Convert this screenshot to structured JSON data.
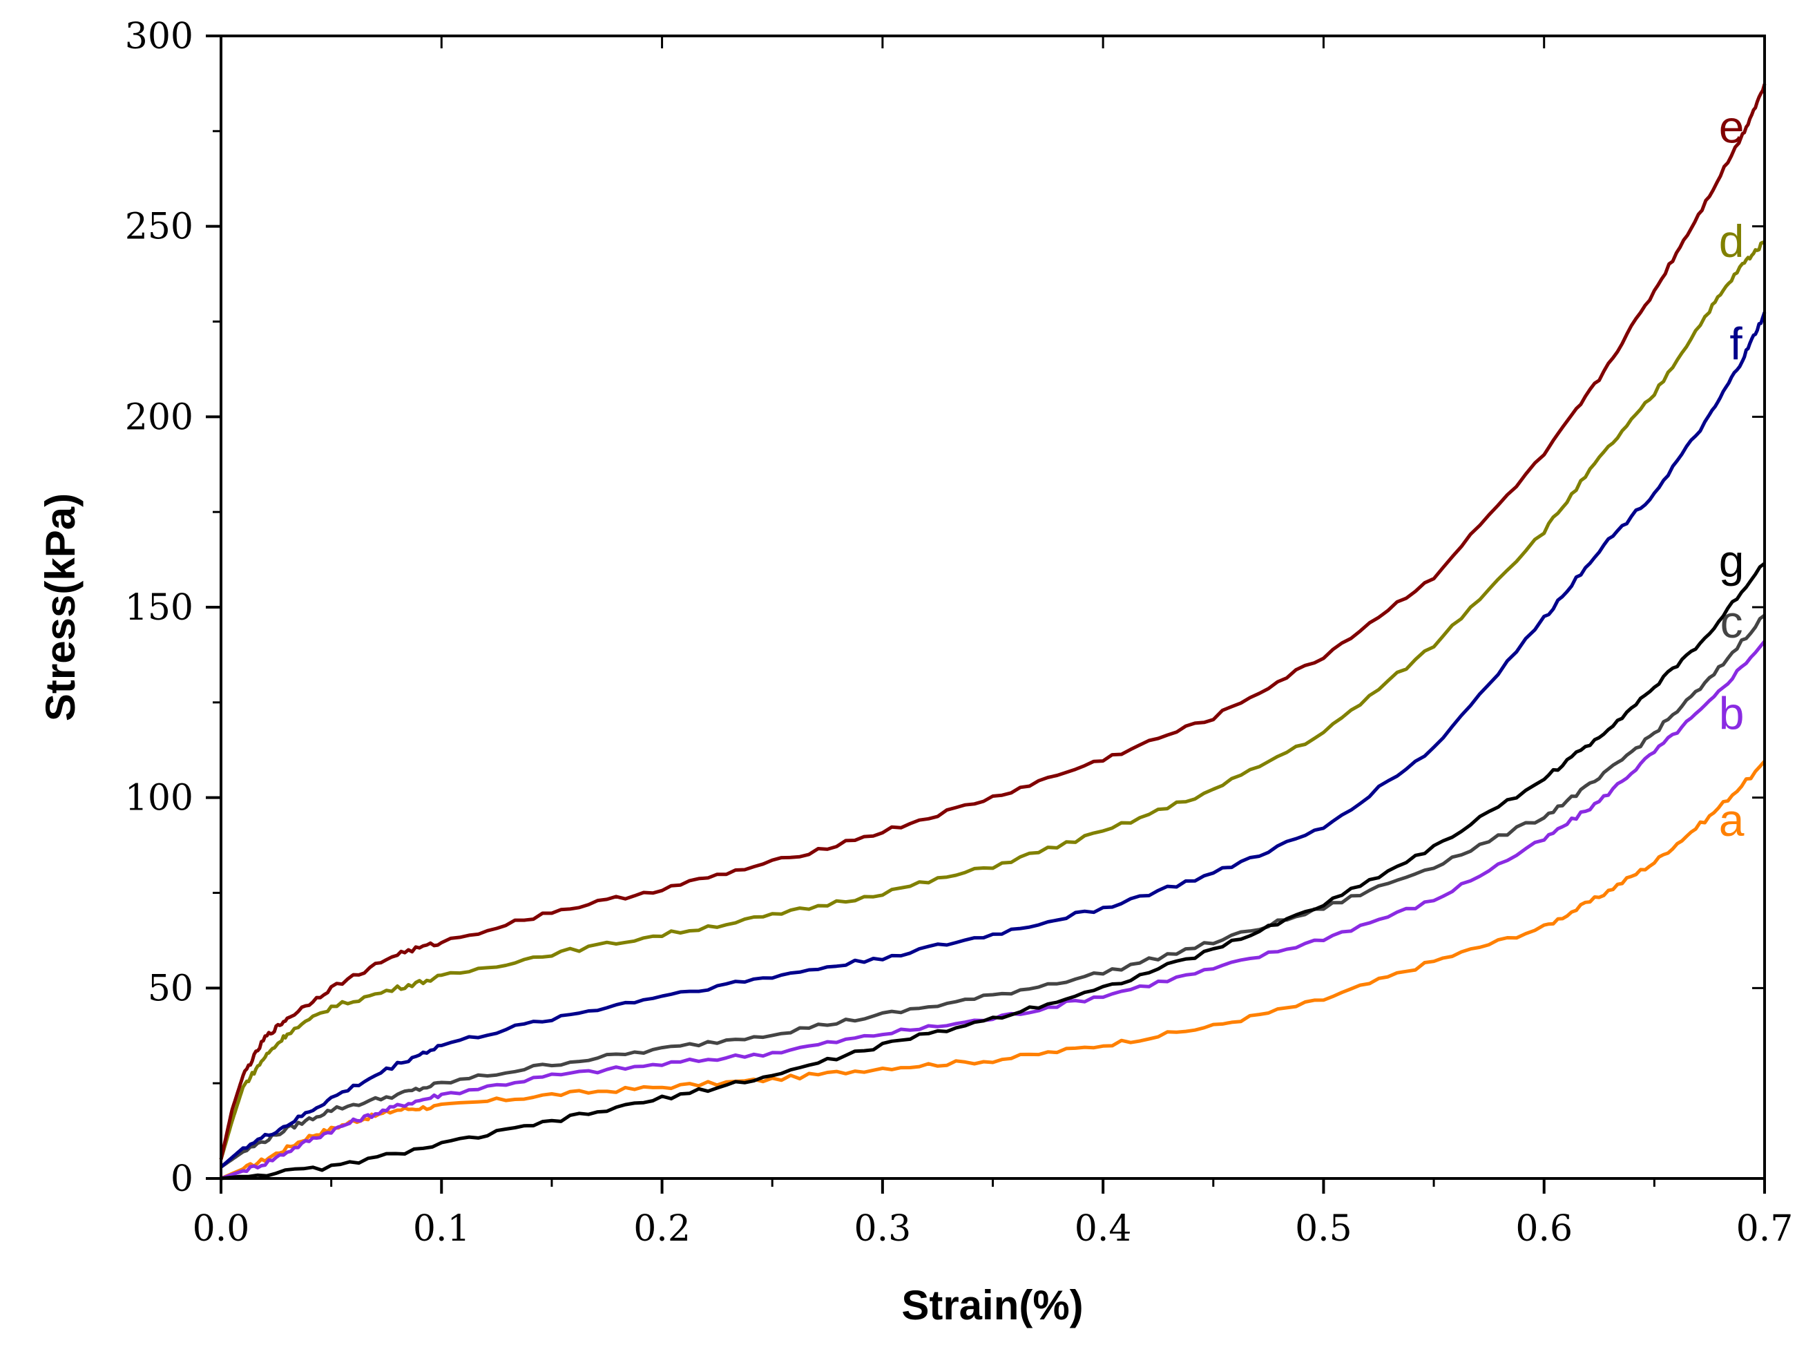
{
  "chart_data": {
    "type": "line",
    "title": "",
    "xlabel": "Strain(%)",
    "ylabel": "Stress(kPa)",
    "xlim": [
      0,
      0.7
    ],
    "ylim": [
      0,
      300
    ],
    "xticks": [
      0.0,
      0.1,
      0.2,
      0.3,
      0.4,
      0.5,
      0.6,
      0.7
    ],
    "xtick_labels": [
      "0.0",
      "0.1",
      "0.2",
      "0.3",
      "0.4",
      "0.5",
      "0.6",
      "0.7"
    ],
    "yticks": [
      0,
      50,
      100,
      150,
      200,
      250,
      300
    ],
    "ytick_labels": [
      "0",
      "50",
      "100",
      "150",
      "200",
      "250",
      "300"
    ],
    "grid": false,
    "series": [
      {
        "name": "a",
        "color": "#ff8000",
        "x": [
          0,
          0.02,
          0.04,
          0.06,
          0.08,
          0.1,
          0.15,
          0.2,
          0.25,
          0.3,
          0.35,
          0.4,
          0.45,
          0.5,
          0.55,
          0.6,
          0.625,
          0.65,
          0.675,
          0.7
        ],
        "y": [
          0,
          5,
          11,
          15,
          18,
          19,
          22,
          24,
          26,
          29,
          31,
          35,
          40,
          47,
          57,
          66,
          74,
          83,
          95,
          109
        ]
      },
      {
        "name": "b",
        "color": "#8a2be2",
        "x": [
          0,
          0.02,
          0.04,
          0.06,
          0.08,
          0.1,
          0.15,
          0.2,
          0.25,
          0.3,
          0.35,
          0.4,
          0.45,
          0.5,
          0.55,
          0.6,
          0.625,
          0.65,
          0.675,
          0.7
        ],
        "y": [
          0,
          4,
          10,
          15,
          19,
          22,
          27,
          30,
          33,
          38,
          42,
          48,
          55,
          63,
          73,
          89,
          99,
          112,
          125,
          141
        ]
      },
      {
        "name": "c",
        "color": "#444444",
        "x": [
          0,
          0.01,
          0.03,
          0.05,
          0.08,
          0.1,
          0.15,
          0.2,
          0.25,
          0.3,
          0.35,
          0.4,
          0.45,
          0.5,
          0.55,
          0.6,
          0.625,
          0.65,
          0.675,
          0.7
        ],
        "y": [
          3,
          7,
          13,
          18,
          22,
          25,
          30,
          34,
          38,
          43,
          48,
          54,
          62,
          71,
          82,
          95,
          105,
          117,
          131,
          148
        ]
      },
      {
        "name": "d",
        "color": "#808000",
        "x": [
          0,
          0.005,
          0.01,
          0.02,
          0.03,
          0.05,
          0.08,
          0.1,
          0.15,
          0.2,
          0.25,
          0.3,
          0.35,
          0.4,
          0.45,
          0.5,
          0.55,
          0.6,
          0.625,
          0.65,
          0.675,
          0.69,
          0.7
        ],
        "y": [
          5,
          15,
          24,
          32,
          38,
          45,
          50,
          53,
          59,
          64,
          69,
          75,
          82,
          91,
          102,
          117,
          140,
          170,
          189,
          206,
          228,
          240,
          246
        ]
      },
      {
        "name": "e",
        "color": "#800000",
        "x": [
          0,
          0.005,
          0.01,
          0.02,
          0.03,
          0.05,
          0.08,
          0.1,
          0.15,
          0.2,
          0.25,
          0.3,
          0.35,
          0.4,
          0.45,
          0.5,
          0.55,
          0.6,
          0.625,
          0.65,
          0.67,
          0.69,
          0.7
        ],
        "y": [
          5,
          18,
          27,
          37,
          42,
          50,
          59,
          62,
          70,
          76,
          83,
          91,
          100,
          110,
          121,
          137,
          158,
          190,
          210,
          233,
          253,
          274,
          287
        ]
      },
      {
        "name": "f",
        "color": "#00008b",
        "x": [
          0,
          0.01,
          0.03,
          0.05,
          0.08,
          0.1,
          0.15,
          0.2,
          0.25,
          0.3,
          0.35,
          0.4,
          0.45,
          0.5,
          0.55,
          0.6,
          0.625,
          0.65,
          0.675,
          0.69,
          0.7
        ],
        "y": [
          3,
          8,
          14,
          21,
          30,
          35,
          42,
          48,
          53,
          58,
          64,
          71,
          80,
          92,
          113,
          147,
          165,
          180,
          200,
          215,
          227
        ]
      },
      {
        "name": "g",
        "color": "#000000",
        "x": [
          0,
          0.05,
          0.1,
          0.15,
          0.2,
          0.25,
          0.3,
          0.35,
          0.4,
          0.45,
          0.5,
          0.55,
          0.6,
          0.625,
          0.65,
          0.675,
          0.7
        ],
        "y": [
          0,
          3,
          9,
          15,
          21,
          27,
          35,
          42,
          50,
          60,
          72,
          87,
          105,
          116,
          129,
          143,
          162
        ]
      }
    ],
    "series_labels": [
      {
        "text": "e",
        "x": 0.685,
        "y": 272,
        "color": "#800000"
      },
      {
        "text": "d",
        "x": 0.685,
        "y": 242,
        "color": "#808000"
      },
      {
        "text": "f",
        "x": 0.687,
        "y": 215,
        "color": "#00008b"
      },
      {
        "text": "g",
        "x": 0.685,
        "y": 158,
        "color": "#000000"
      },
      {
        "text": "c",
        "x": 0.685,
        "y": 142,
        "color": "#444444"
      },
      {
        "text": "b",
        "x": 0.685,
        "y": 118,
        "color": "#8a2be2"
      },
      {
        "text": "a",
        "x": 0.685,
        "y": 90,
        "color": "#ff8000"
      }
    ]
  }
}
